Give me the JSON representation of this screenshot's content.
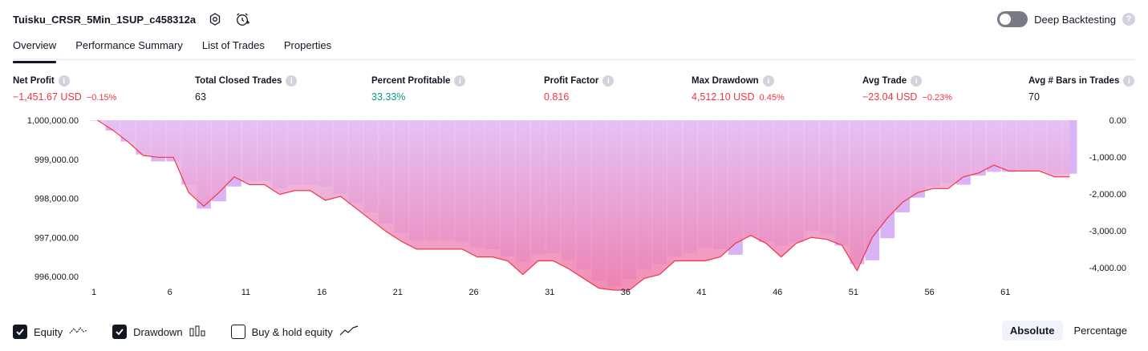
{
  "header": {
    "strategy_name": "Tuisku_CRSR_5Min_1SUP_c458312a",
    "deep_backtesting_label": "Deep Backtesting",
    "help_glyph": "?"
  },
  "tabs": [
    {
      "label": "Overview"
    },
    {
      "label": "Performance Summary"
    },
    {
      "label": "List of Trades"
    },
    {
      "label": "Properties"
    }
  ],
  "metrics": {
    "info_glyph": "i",
    "net_profit": {
      "label": "Net Profit",
      "value": "−1,451.67 USD",
      "pct": "−0.15%"
    },
    "total_closed_trades": {
      "label": "Total Closed Trades",
      "value": "63"
    },
    "percent_profitable": {
      "label": "Percent Profitable",
      "value": "33.33%"
    },
    "profit_factor": {
      "label": "Profit Factor",
      "value": "0.816"
    },
    "max_drawdown": {
      "label": "Max Drawdown",
      "value": "4,512.10 USD",
      "pct": "0.45%"
    },
    "avg_trade": {
      "label": "Avg Trade",
      "value": "−23.04 USD",
      "pct": "−0.23%"
    },
    "avg_bars": {
      "label": "Avg # Bars in Trades",
      "value": "70"
    }
  },
  "colors": {
    "equity_line": "#f23645",
    "drawdown_bar": "#d9b3f5",
    "equity_fill_top": "#e8c4f5",
    "equity_fill_bottom": "#f07aa8",
    "negative": "#f23645",
    "positive": "#089981"
  },
  "chart_data": {
    "type": "line",
    "series": [
      {
        "name": "Equity",
        "values": [
          1000000,
          999750,
          999450,
          999100,
          999050,
          999050,
          998150,
          997800,
          998150,
          998550,
          998350,
          998350,
          998100,
          998200,
          998200,
          997950,
          998050,
          997750,
          997450,
          997150,
          996900,
          996700,
          996700,
          996700,
          996700,
          996500,
          996500,
          996400,
          996050,
          996400,
          996400,
          996200,
          995950,
          995700,
          995650,
          995650,
          995950,
          996050,
          996400,
          996400,
          996400,
          996500,
          996850,
          997050,
          996850,
          996500,
          996850,
          997000,
          996950,
          996800,
          996150,
          997000,
          997500,
          997900,
          998150,
          998250,
          998250,
          998550,
          998650,
          998850,
          998700,
          998700,
          998700,
          998550,
          998550
        ]
      },
      {
        "name": "Drawdown",
        "values": [
          0,
          -280,
          -580,
          -930,
          -1120,
          -1120,
          -1750,
          -2400,
          -2200,
          -1800,
          -1650,
          -1650,
          -1850,
          -1750,
          -1750,
          -1800,
          -2000,
          -2250,
          -2500,
          -2800,
          -3050,
          -3250,
          -3250,
          -3250,
          -3300,
          -3450,
          -3500,
          -3700,
          -3850,
          -3650,
          -3600,
          -3800,
          -4050,
          -4350,
          -4500,
          -4300,
          -4050,
          -3900,
          -3700,
          -3600,
          -3450,
          -3500,
          -3650,
          -3150,
          -3300,
          -3400,
          -3300,
          -3000,
          -3100,
          -3400,
          -3900,
          -3800,
          -3200,
          -2500,
          -2100,
          -1800,
          -1700,
          -1750,
          -1500,
          -1400,
          -1400,
          -1350,
          -1350,
          -1450,
          -1450
        ]
      }
    ],
    "x_ticks": [
      "1",
      "6",
      "11",
      "16",
      "21",
      "26",
      "31",
      "36",
      "41",
      "46",
      "51",
      "56",
      "61"
    ],
    "x_tick_values": [
      1,
      6,
      11,
      16,
      21,
      26,
      31,
      36,
      41,
      46,
      51,
      56,
      61
    ],
    "y_left_ticks": [
      "1,000,000.00",
      "999,000.00",
      "998,000.00",
      "997,000.00",
      "996,000.00"
    ],
    "y_left_values": [
      1000000,
      999000,
      998000,
      997000,
      996000
    ],
    "y_right_ticks": [
      "0.00",
      "-1,000.00",
      "-2,000.00",
      "-3,000.00",
      "-4,000.00"
    ],
    "y_right_values": [
      0,
      -1000,
      -2000,
      -3000,
      -4000
    ],
    "grid": false
  },
  "footer": {
    "equity_label": "Equity",
    "drawdown_label": "Drawdown",
    "buyhold_label": "Buy & hold equity",
    "absolute_label": "Absolute",
    "percentage_label": "Percentage"
  }
}
